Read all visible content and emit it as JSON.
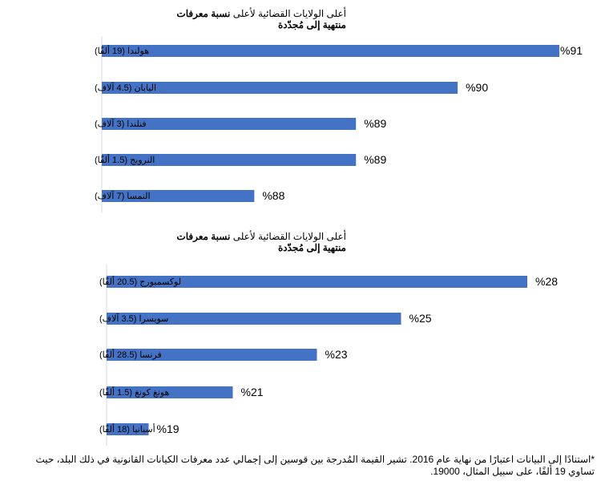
{
  "chart_data": [
    {
      "type": "bar",
      "orientation": "horizontal",
      "title_normal": "أعلى الولايات القضائية لأعلى",
      "title_bold": "نسبة معرفات",
      "title_line2": "منتهية إلى مُجدّدة",
      "categories": [
        "هولندا (19 ألفًا)",
        "اليابان (4.5 آلاف)",
        "فنلندا (3 آلاف)",
        "النرويج (1.5 ألفًا)",
        "النمسا (7 آلاف)"
      ],
      "values": [
        91,
        90,
        89,
        89,
        88
      ],
      "labels": [
        "%91",
        "%90",
        "%89",
        "%89",
        "%88"
      ],
      "xlim": [
        86.5,
        91
      ],
      "grid": false,
      "color": "#4472C4"
    },
    {
      "type": "bar",
      "orientation": "horizontal",
      "title_normal": "أعلى الولايات القضائية لأعلى",
      "title_bold": "نسبة معرفات",
      "title_line2": "منتهية إلى مُجدّدة",
      "categories": [
        "لوكسمبورج (20.5 ألفًا)",
        "سويسرا (3.5 آلاف)",
        "فرنسا (28.5 ألفًا)",
        "هونغ كونغ (1.5 ألفًا)",
        "أسبانيا (18 ألفًا)"
      ],
      "values": [
        28,
        25,
        23,
        21,
        19
      ],
      "labels": [
        "%28",
        "%25",
        "%23",
        "%21",
        "%19"
      ],
      "xlim": [
        18,
        28
      ],
      "grid": false,
      "color": "#4472C4"
    }
  ],
  "footnote": "*استنادًا إلى البيانات اعتبارًا من نهاية عام 2016. تشير القيمة المُدرجة بين قوسين إلى إجمالي عدد معرفات الكيانات القانونية في ذلك البلد، حيث تساوي 19 ألفًا، على سبيل المثال، 19000."
}
